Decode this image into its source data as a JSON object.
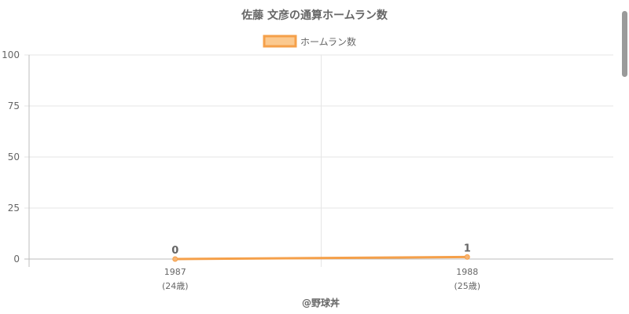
{
  "chart_data": {
    "type": "line",
    "title": "佐藤 文彦の通算ホームラン数",
    "xlabel": "",
    "ylabel": "",
    "categories": [
      "1987",
      "1988"
    ],
    "category_sublabels": [
      "(24歳)",
      "(25歳)"
    ],
    "series": [
      {
        "name": "ホームラン数",
        "values": [
          0,
          1
        ],
        "data_labels": [
          "0",
          "1"
        ]
      }
    ],
    "ylim": [
      0,
      100
    ],
    "yticks": [
      0,
      25,
      50,
      75,
      100
    ],
    "ytick_labels": [
      "0",
      "25",
      "50",
      "75",
      "100"
    ],
    "grid": true,
    "legend": "top-center",
    "colors": {
      "line": "#f5a04a",
      "point": "#f7b574",
      "legend_fill": "#fbc98f",
      "grid": "#e6e6e6",
      "axis": "#bdbdbd",
      "text": "#666666"
    }
  },
  "footer": {
    "credit": "@野球丼"
  }
}
